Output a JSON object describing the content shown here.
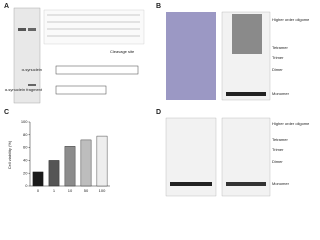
{
  "panels": {
    "a": {
      "letter": "A",
      "labels": [
        "α-synuclein",
        "α-synuclein fragment",
        "Cleavage site"
      ]
    },
    "b": {
      "letter": "B",
      "labels": [
        "Higher order oligomer",
        "Tetramer",
        "Trimer",
        "Dimer",
        "Monomer"
      ]
    },
    "d": {
      "letter": "D",
      "labels": [
        "Higher order oligomer",
        "Tetramer",
        "Trimer",
        "Dimer",
        "Monomer"
      ]
    }
  },
  "chart_data": {
    "type": "bar",
    "panel": "C",
    "y_label": "Cell viability (%)",
    "categories": [
      "0",
      "1",
      "10",
      "50",
      "100"
    ],
    "values": [
      22,
      40,
      62,
      72,
      78
    ],
    "colors": [
      "#1a1a1a",
      "#555555",
      "#8c8c8c",
      "#bdbdbd",
      "#eeeeee"
    ],
    "ylim": [
      0,
      100
    ],
    "yticks": [
      0,
      20,
      40,
      60,
      80,
      100
    ]
  }
}
